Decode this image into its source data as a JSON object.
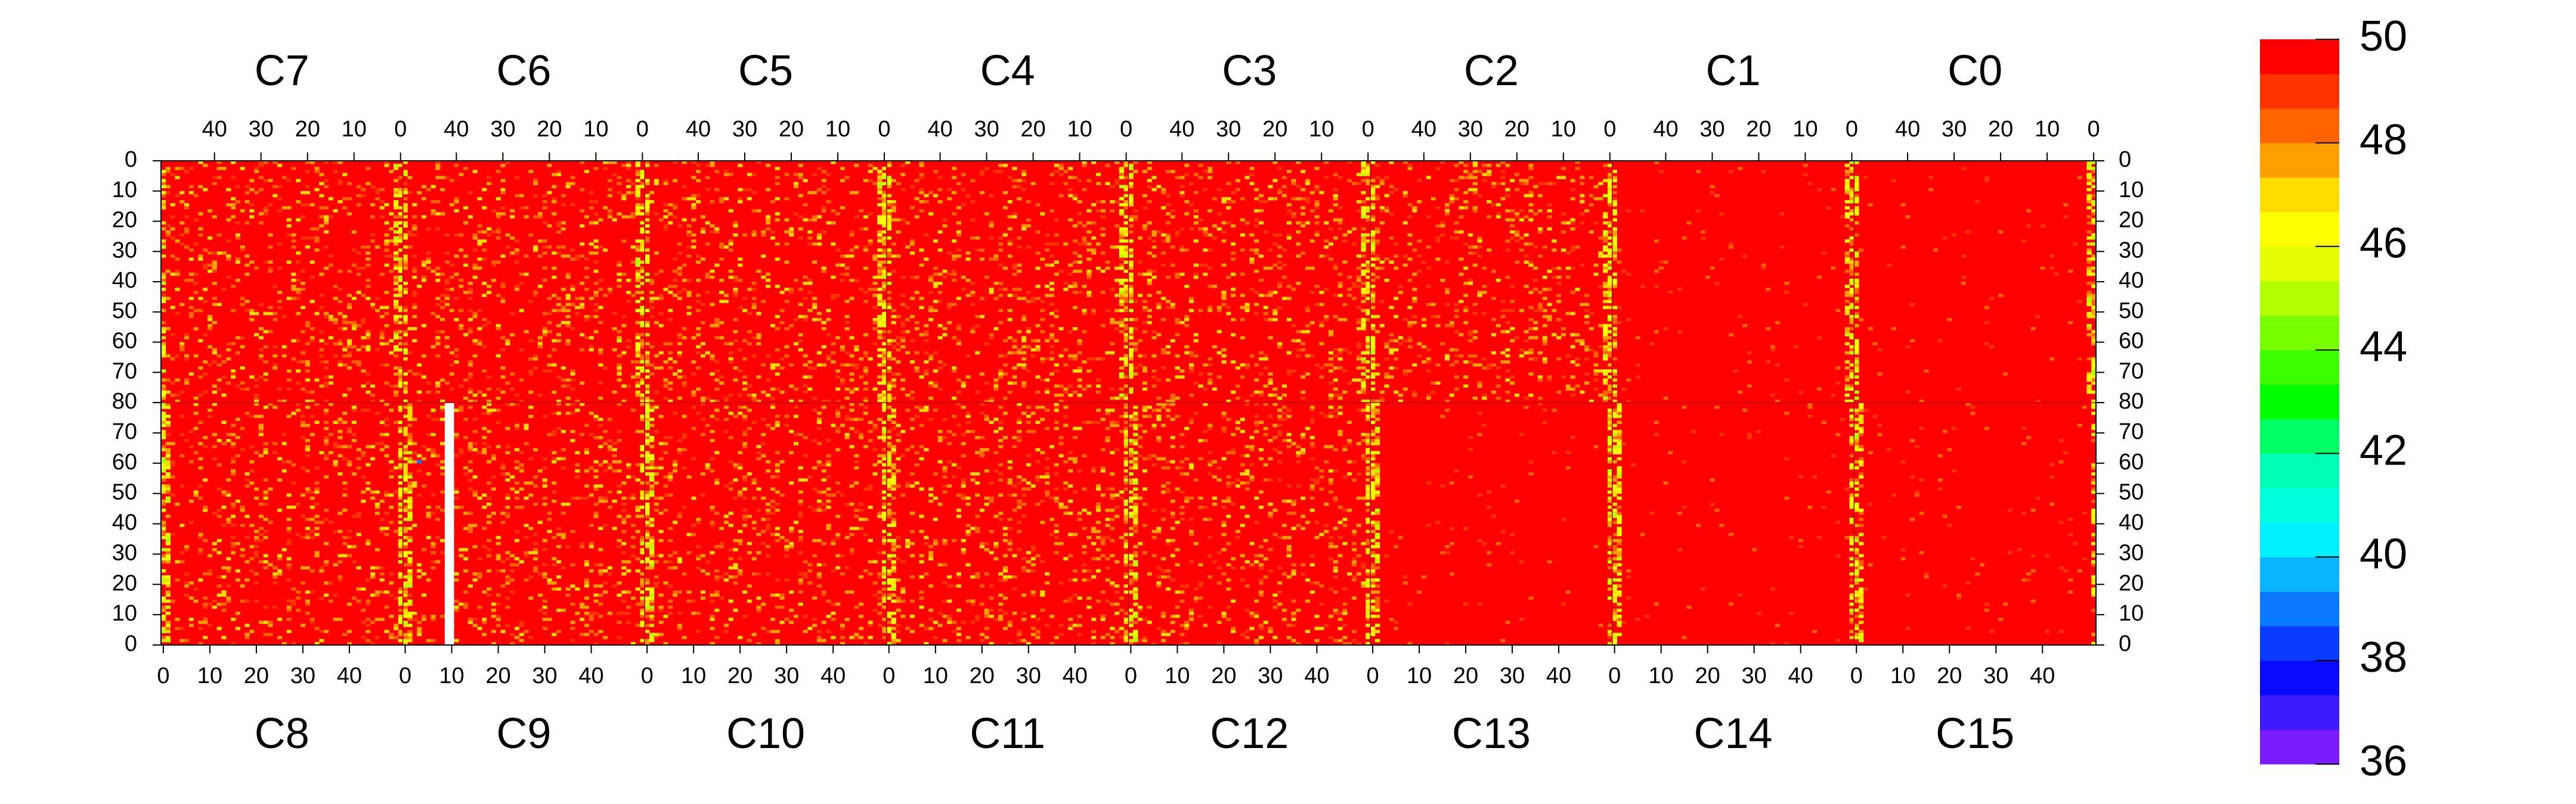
{
  "chart_data": {
    "type": "heatmap",
    "title": "",
    "top_chip_labels": [
      "C7",
      "C6",
      "C5",
      "C4",
      "C3",
      "C2",
      "C1",
      "C0"
    ],
    "bottom_chip_labels": [
      "C8",
      "C9",
      "C10",
      "C11",
      "C12",
      "C13",
      "C14",
      "C15"
    ],
    "top_column_ticks": [
      "40",
      "30",
      "20",
      "10",
      "0"
    ],
    "bottom_column_ticks": [
      "0",
      "10",
      "20",
      "30",
      "40"
    ],
    "top_row_ticks": [
      "0",
      "10",
      "20",
      "30",
      "40",
      "50",
      "60",
      "70",
      "80"
    ],
    "bottom_row_ticks": [
      "70",
      "60",
      "50",
      "40",
      "30",
      "20",
      "10",
      "0"
    ],
    "columns_per_chip": 52,
    "rows_per_half": 80,
    "zlim": [
      36,
      50
    ],
    "colorbar_ticks": [
      "50",
      "48",
      "46",
      "44",
      "42",
      "40",
      "38",
      "36"
    ],
    "palette": [
      "#7a1cff",
      "#3c1cff",
      "#0a0aff",
      "#0a3cff",
      "#0a78ff",
      "#0ab4ff",
      "#00f0ff",
      "#00ffdc",
      "#00ffb4",
      "#00ff64",
      "#00ff00",
      "#3cff00",
      "#78ff00",
      "#b4ff00",
      "#e6ff00",
      "#ffff00",
      "#ffdc00",
      "#ffa000",
      "#ff6400",
      "#ff3200",
      "#ff0000"
    ],
    "dominant_value": 50,
    "typical_value_range": [
      47,
      50
    ],
    "edge_column_value_range": [
      45,
      49
    ],
    "notable_values": [
      {
        "chip": "C13",
        "column": 1,
        "row": 57,
        "value": 45
      },
      {
        "chip": "C9",
        "column": 3,
        "row": 60,
        "value": 39
      },
      {
        "chip": "C6",
        "column": 5,
        "row": 59,
        "value": 45
      }
    ],
    "masked_region": {
      "chip": "C9",
      "columns": [
        9,
        10
      ],
      "rows": [
        0,
        79
      ],
      "value": null
    }
  }
}
